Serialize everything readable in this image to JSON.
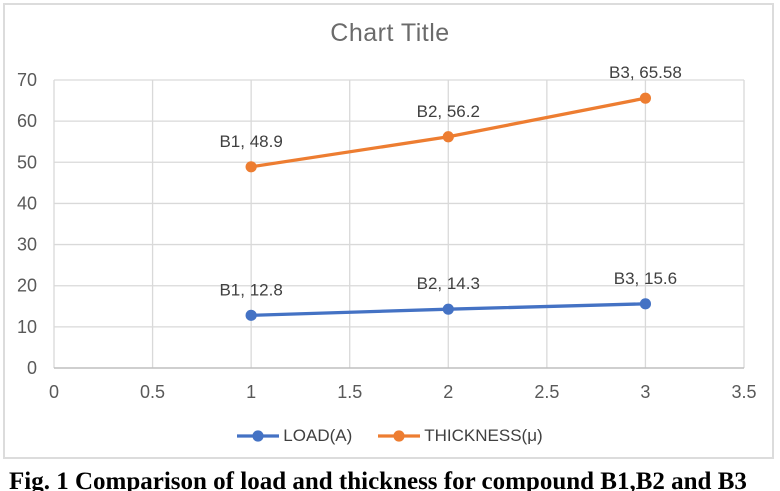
{
  "chart_data": {
    "type": "line",
    "title": "Chart Title",
    "x": [
      1,
      2,
      3
    ],
    "xlim": [
      0,
      3.5
    ],
    "ylim": [
      0,
      70
    ],
    "x_ticks": [
      "0",
      "0.5",
      "1",
      "1.5",
      "2",
      "2.5",
      "3",
      "3.5"
    ],
    "y_ticks": [
      0,
      10,
      20,
      30,
      40,
      50,
      60,
      70
    ],
    "grid": true,
    "legend_position": "bottom",
    "series": [
      {
        "name": "LOAD(A)",
        "color": "#4472C4",
        "values": [
          12.8,
          14.3,
          15.6
        ],
        "point_labels": [
          "B1, 12.8",
          "B2, 14.3",
          "B3, 15.6"
        ]
      },
      {
        "name": "THICKNESS(μ)",
        "color": "#ED7D31",
        "values": [
          48.9,
          56.2,
          65.58
        ],
        "point_labels": [
          "B1, 48.9",
          "B2, 56.2",
          "B3, 65.58"
        ]
      }
    ],
    "colors": {
      "grid": "#d9d9d9",
      "axis_line": "#bfbfbf",
      "tick_text": "#595959",
      "title_text": "#6b6b6b",
      "data_label_text": "#404040",
      "legend_text": "#404040",
      "chart_border": "#dcdcdc"
    }
  },
  "caption": {
    "text": "Fig. 1 Comparison of load and thickness for compound B1,B2 and B3"
  }
}
